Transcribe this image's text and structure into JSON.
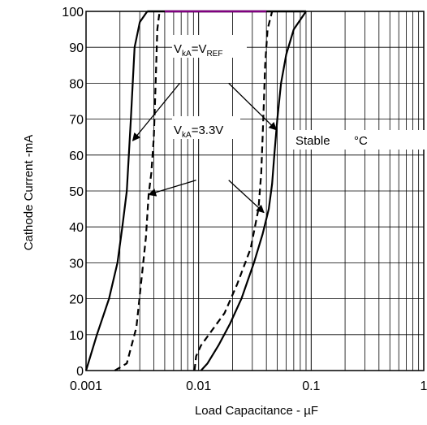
{
  "chart_data": {
    "type": "line",
    "title": "",
    "xlabel": "Load Capacitance - µF",
    "ylabel": "Cathode  Current -mA",
    "x_scale": "log",
    "xlim": [
      0.001,
      1
    ],
    "ylim": [
      0,
      100
    ],
    "grid": true,
    "x_ticks": [
      {
        "value": 0.001,
        "label": "0.001"
      },
      {
        "value": 0.01,
        "label": "0.01"
      },
      {
        "value": 0.1,
        "label": "0.1"
      },
      {
        "value": 1,
        "label": "1"
      }
    ],
    "y_ticks": [
      {
        "value": 0,
        "label": "0"
      },
      {
        "value": 10,
        "label": "10"
      },
      {
        "value": 20,
        "label": "20"
      },
      {
        "value": 30,
        "label": "30"
      },
      {
        "value": 40,
        "label": "40"
      },
      {
        "value": 50,
        "label": "50"
      },
      {
        "value": 60,
        "label": "60"
      },
      {
        "value": 70,
        "label": "70"
      },
      {
        "value": 80,
        "label": "80"
      },
      {
        "value": 90,
        "label": "90"
      },
      {
        "value": 100,
        "label": "100"
      }
    ],
    "series": [
      {
        "style": "solid",
        "color": "#000000",
        "points": [
          [
            0.001,
            0
          ],
          [
            0.00125,
            10
          ],
          [
            0.0016,
            20
          ],
          [
            0.0019,
            30
          ],
          [
            0.0021,
            40
          ],
          [
            0.0023,
            50
          ],
          [
            0.0024,
            60
          ],
          [
            0.0025,
            70
          ],
          [
            0.0026,
            80
          ],
          [
            0.0027,
            90
          ],
          [
            0.003,
            97
          ],
          [
            0.0035,
            100
          ]
        ]
      },
      {
        "style": "dashed",
        "color": "#000000",
        "points": [
          [
            0.0018,
            0
          ],
          [
            0.0023,
            2
          ],
          [
            0.0028,
            12
          ],
          [
            0.0031,
            25
          ],
          [
            0.0034,
            37
          ],
          [
            0.0036,
            49
          ],
          [
            0.0038,
            55
          ],
          [
            0.004,
            65
          ],
          [
            0.0041,
            75
          ],
          [
            0.0042,
            85
          ],
          [
            0.0043,
            95
          ],
          [
            0.0045,
            100
          ]
        ]
      },
      {
        "style": "dashed",
        "color": "#000000",
        "points": [
          [
            0.0092,
            0
          ],
          [
            0.0095,
            4
          ],
          [
            0.0105,
            7
          ],
          [
            0.013,
            11
          ],
          [
            0.017,
            16
          ],
          [
            0.022,
            24
          ],
          [
            0.029,
            34
          ],
          [
            0.034,
            45
          ],
          [
            0.036,
            55
          ],
          [
            0.037,
            65
          ],
          [
            0.038,
            75
          ],
          [
            0.039,
            85
          ],
          [
            0.041,
            95
          ],
          [
            0.045,
            100
          ]
        ]
      },
      {
        "style": "solid",
        "color": "#000000",
        "points": [
          [
            0.0105,
            0
          ],
          [
            0.012,
            2
          ],
          [
            0.015,
            7
          ],
          [
            0.019,
            13
          ],
          [
            0.024,
            20
          ],
          [
            0.031,
            30
          ],
          [
            0.037,
            38
          ],
          [
            0.042,
            45
          ],
          [
            0.045,
            52
          ],
          [
            0.047,
            60
          ],
          [
            0.05,
            70
          ],
          [
            0.054,
            80
          ],
          [
            0.06,
            88
          ],
          [
            0.07,
            95
          ],
          [
            0.09,
            100
          ]
        ]
      }
    ],
    "top_segment_color": "#800080",
    "annotations": [
      {
        "id": "vka-vref",
        "base": "V",
        "sub": "kA",
        "eq": "=V",
        "sub2": "REF"
      },
      {
        "id": "vka-33",
        "base": "V",
        "sub": "kA",
        "eq": "=3.3V",
        "sub2": ""
      },
      {
        "id": "stable",
        "text": "Stable",
        "suffix": "°C"
      }
    ]
  }
}
